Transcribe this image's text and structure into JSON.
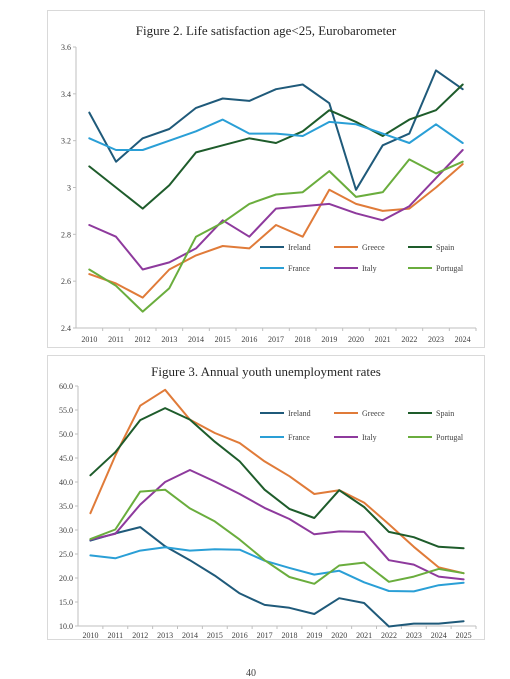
{
  "page_number": "40",
  "colors": {
    "Ireland": "#1f5a7a",
    "Greece": "#e07b39",
    "Spain": "#1e5c2b",
    "France": "#2a9fd6",
    "Italy": "#8e3a9d",
    "Portugal": "#6aad3d"
  },
  "chart_data": [
    {
      "type": "line",
      "title": "Figure 2.  Life satisfaction age<25, Eurobarometer",
      "xlabel": "",
      "ylabel": "",
      "x": [
        "2010",
        "2011",
        "2012",
        "2013",
        "2014",
        "2015",
        "2016",
        "2017",
        "2018",
        "2019",
        "2020",
        "2021",
        "2022",
        "2023",
        "2024"
      ],
      "ylim": [
        2.4,
        3.6
      ],
      "yticks": [
        "2.4",
        "2.6",
        "2.8",
        "3",
        "3.2",
        "3.4",
        "3.6"
      ],
      "legend": "bottom-right",
      "grid": false,
      "series": [
        {
          "name": "Ireland",
          "values": [
            3.32,
            3.11,
            3.21,
            3.25,
            3.34,
            3.38,
            3.37,
            3.42,
            3.44,
            3.36,
            2.99,
            3.18,
            3.23,
            3.5,
            3.42
          ]
        },
        {
          "name": "Greece",
          "values": [
            2.63,
            2.59,
            2.53,
            2.65,
            2.71,
            2.75,
            2.74,
            2.84,
            2.79,
            2.99,
            2.93,
            2.9,
            2.91,
            3.0,
            3.1
          ]
        },
        {
          "name": "Spain",
          "values": [
            3.09,
            3.0,
            2.91,
            3.01,
            3.15,
            3.18,
            3.21,
            3.19,
            3.24,
            3.33,
            3.28,
            3.22,
            3.29,
            3.33,
            3.44
          ]
        },
        {
          "name": "France",
          "values": [
            3.21,
            3.16,
            3.16,
            3.2,
            3.24,
            3.29,
            3.23,
            3.23,
            3.22,
            3.28,
            3.27,
            3.23,
            3.19,
            3.27,
            3.19
          ]
        },
        {
          "name": "Italy",
          "values": [
            2.84,
            2.79,
            2.65,
            2.68,
            2.74,
            2.86,
            2.79,
            2.91,
            2.92,
            2.93,
            2.89,
            2.86,
            2.92,
            3.04,
            3.16
          ]
        },
        {
          "name": "Portugal",
          "values": [
            2.65,
            2.58,
            2.47,
            2.57,
            2.79,
            2.85,
            2.93,
            2.97,
            2.98,
            3.07,
            2.96,
            2.98,
            3.12,
            3.06,
            3.11
          ]
        }
      ]
    },
    {
      "type": "line",
      "title": "Figure 3.  Annual youth unemployment rates",
      "xlabel": "",
      "ylabel": "",
      "x": [
        "2010",
        "2011",
        "2012",
        "2013",
        "2014",
        "2015",
        "2016",
        "2017",
        "2018",
        "2019",
        "2020",
        "2021",
        "2022",
        "2023",
        "2024",
        "2025"
      ],
      "ylim": [
        10,
        60
      ],
      "yticks": [
        "10.0",
        "15.0",
        "20.0",
        "25.0",
        "30.0",
        "35.0",
        "40.0",
        "45.0",
        "50.0",
        "55.0",
        "60.0"
      ],
      "legend": "top-right",
      "grid": false,
      "series": [
        {
          "name": "Ireland",
          "values": [
            27.8,
            29.3,
            30.6,
            26.6,
            23.7,
            20.5,
            16.8,
            14.4,
            13.8,
            12.5,
            15.8,
            14.8,
            9.9,
            10.5,
            10.5,
            11.0
          ]
        },
        {
          "name": "Greece",
          "values": [
            33.5,
            45.5,
            55.9,
            59.2,
            53.0,
            50.2,
            48.1,
            44.3,
            41.2,
            37.5,
            38.3,
            35.7,
            31.2,
            26.5,
            22.2,
            21.0
          ]
        },
        {
          "name": "Spain",
          "values": [
            41.4,
            46.2,
            52.9,
            55.4,
            53.0,
            48.4,
            44.3,
            38.4,
            34.4,
            32.5,
            38.3,
            34.8,
            29.6,
            28.5,
            26.5,
            26.2
          ]
        },
        {
          "name": "France",
          "values": [
            24.7,
            24.1,
            25.7,
            26.4,
            25.7,
            26.0,
            25.9,
            23.6,
            22.1,
            20.7,
            21.5,
            19.1,
            17.3,
            17.2,
            18.5,
            19.0
          ]
        },
        {
          "name": "Italy",
          "values": [
            28.0,
            29.2,
            35.3,
            40.0,
            42.5,
            40.1,
            37.5,
            34.6,
            32.3,
            29.1,
            29.7,
            29.6,
            23.7,
            22.8,
            20.3,
            19.7
          ]
        },
        {
          "name": "Portugal",
          "values": [
            28.1,
            30.1,
            38.0,
            38.4,
            34.5,
            31.8,
            28.0,
            23.7,
            20.2,
            18.8,
            22.6,
            23.2,
            19.2,
            20.3,
            21.9,
            21.0
          ]
        }
      ]
    }
  ]
}
